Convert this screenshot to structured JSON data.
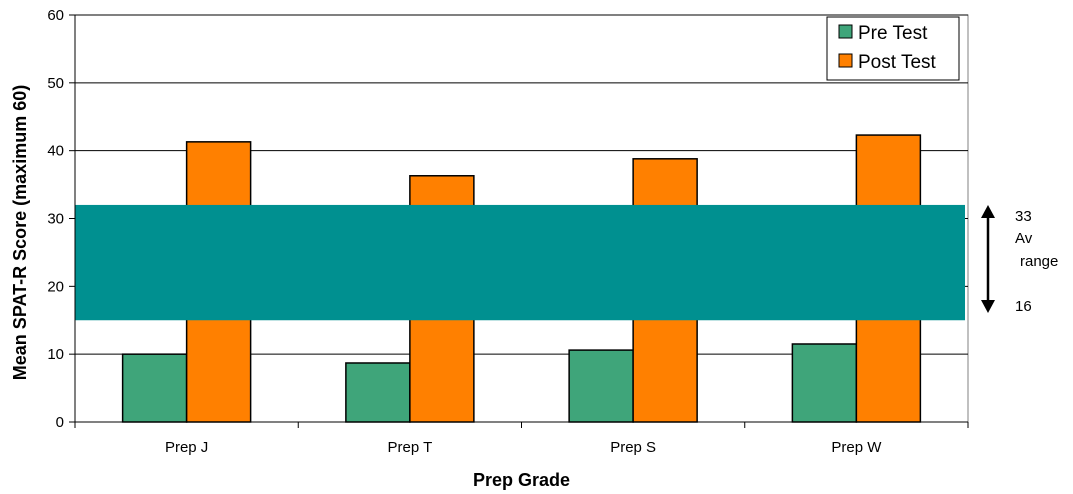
{
  "chart_data": {
    "type": "bar",
    "xlabel": "Prep Grade",
    "ylabel": "Mean SPAT-R Score (maximum 60)",
    "ylim": [
      0,
      60
    ],
    "yticks": [
      0,
      10,
      20,
      30,
      40,
      50,
      60
    ],
    "categories": [
      "Prep J",
      "Prep T",
      "Prep S",
      "Prep W"
    ],
    "series": [
      {
        "name": "Pre Test",
        "color": "#3fa57a",
        "values": [
          10.0,
          8.7,
          10.6,
          11.5
        ]
      },
      {
        "name": "Post Test",
        "color": "#ff8000",
        "values": [
          41.3,
          36.3,
          38.8,
          42.3
        ]
      }
    ],
    "grid": true,
    "legend_position": "top-right",
    "band": {
      "from": 15,
      "to": 32,
      "color": "#009090"
    },
    "band_annotation": {
      "top_value": "33",
      "label_line1": "Av",
      "label_line2": "range",
      "bottom_value": "16"
    }
  }
}
